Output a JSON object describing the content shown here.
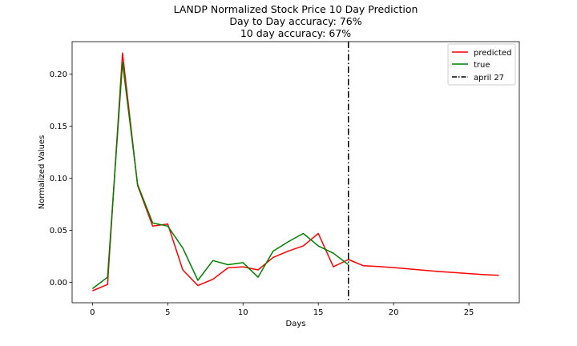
{
  "chart_data": {
    "type": "line",
    "title_lines": [
      "LANDP Normalized Stock Price 10 Day Prediction",
      "Day to Day accuracy: 76%",
      "10 day accuracy: 67%"
    ],
    "xlabel": "Days",
    "ylabel": "Normalized Values",
    "xlim": [
      -1.35,
      28.35
    ],
    "ylim": [
      -0.0195,
      0.231
    ],
    "xticks": [
      0,
      5,
      10,
      15,
      20,
      25
    ],
    "xtick_labels": [
      "0",
      "5",
      "10",
      "15",
      "20",
      "25"
    ],
    "yticks": [
      0.0,
      0.05,
      0.1,
      0.15,
      0.2
    ],
    "ytick_labels": [
      "0.00",
      "0.05",
      "0.10",
      "0.15",
      "0.20"
    ],
    "grid": false,
    "legend_position": "top-right",
    "series": [
      {
        "name": "predicted",
        "color": "#ff0000",
        "x": [
          0,
          1,
          2,
          3,
          4,
          5,
          6,
          7,
          8,
          9,
          10,
          11,
          12,
          13,
          14,
          15,
          16,
          17,
          18,
          19,
          20,
          21,
          22,
          23,
          24,
          25,
          26,
          27
        ],
        "y": [
          -0.008,
          -0.002,
          0.22,
          0.093,
          0.054,
          0.056,
          0.012,
          -0.003,
          0.003,
          0.014,
          0.015,
          0.012,
          0.024,
          0.03,
          0.035,
          0.047,
          0.015,
          0.022,
          0.016,
          0.0152,
          0.0142,
          0.013,
          0.0117,
          0.0105,
          0.0095,
          0.0085,
          0.0075,
          0.0068
        ]
      },
      {
        "name": "true",
        "color": "#008000",
        "x": [
          0,
          1,
          2,
          3,
          4,
          5,
          6,
          7,
          8,
          9,
          10,
          11,
          12,
          13,
          14,
          15,
          16,
          17
        ],
        "y": [
          -0.006,
          0.005,
          0.211,
          0.094,
          0.057,
          0.054,
          0.033,
          0.002,
          0.021,
          0.017,
          0.019,
          0.005,
          0.03,
          0.039,
          0.047,
          0.035,
          0.028,
          0.017
        ]
      }
    ],
    "vline": {
      "name": "april 27",
      "x": 17,
      "color": "#000000",
      "style": "dash-dot"
    }
  }
}
